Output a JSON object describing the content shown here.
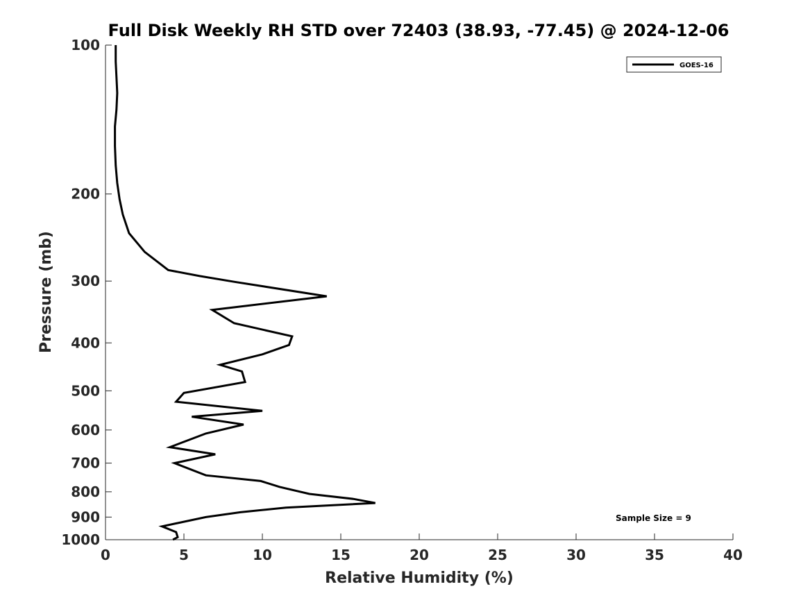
{
  "chart_data": {
    "type": "line",
    "title": "Full Disk Weekly RH STD over 72403 (38.93, -77.45) @ 2024-12-06",
    "xlabel": "Relative Humidity (%)",
    "ylabel": "Pressure (mb)",
    "xlim": [
      0,
      40
    ],
    "ylim": [
      100,
      1000
    ],
    "yscale": "log",
    "y_reversed": true,
    "grid": false,
    "legend_position": "top-right",
    "xticks": [
      "0",
      "5",
      "10",
      "15",
      "20",
      "25",
      "30",
      "35",
      "40"
    ],
    "yticks": [
      "100",
      "200",
      "300",
      "400",
      "500",
      "600",
      "700",
      "800",
      "900",
      "1000"
    ],
    "annotation": "Sample Size = 9",
    "series": [
      {
        "name": "GOES-16",
        "color": "#000000",
        "x": [
          0.65,
          0.65,
          0.7,
          0.75,
          0.7,
          0.6,
          0.6,
          0.65,
          0.75,
          0.9,
          1.1,
          1.5,
          2.5,
          4.0,
          6.0,
          8.2,
          14.1,
          6.8,
          8.2,
          11.9,
          11.7,
          10.0,
          7.3,
          8.7,
          8.9,
          5.0,
          4.5,
          10.0,
          5.5,
          8.8,
          6.4,
          4.1,
          7.0,
          4.4,
          6.4,
          9.9,
          11.1,
          13.0,
          15.8,
          17.2,
          11.5,
          8.6,
          6.4,
          3.6,
          4.5,
          4.6,
          4.3
        ],
        "y": [
          100,
          108,
          116,
          125,
          135,
          146,
          160,
          175,
          190,
          205,
          220,
          240,
          262,
          285,
          293,
          301,
          322,
          343,
          365,
          388,
          404,
          422,
          443,
          457,
          480,
          505,
          526,
          549,
          564,
          585,
          610,
          650,
          672,
          700,
          741,
          761,
          782,
          808,
          827,
          843,
          861,
          880,
          900,
          940,
          965,
          988,
          1000
        ]
      }
    ]
  }
}
